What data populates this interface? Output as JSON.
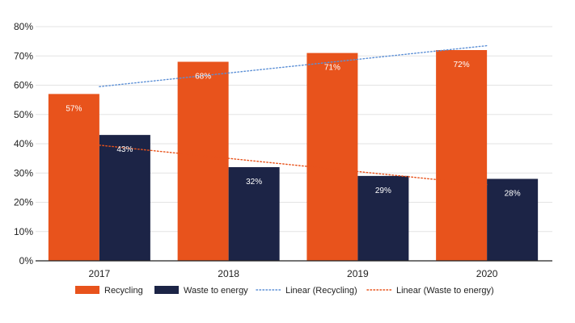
{
  "chart_data": {
    "type": "bar",
    "categories": [
      "2017",
      "2018",
      "2019",
      "2020"
    ],
    "series": [
      {
        "name": "Recycling",
        "values": [
          57,
          68,
          71,
          72
        ],
        "labels": [
          "57%",
          "68%",
          "71%",
          "72%"
        ],
        "color": "#e8531c"
      },
      {
        "name": "Waste to energy",
        "values": [
          43,
          32,
          29,
          28
        ],
        "labels": [
          "43%",
          "32%",
          "29%",
          "28%"
        ],
        "color": "#1c2446"
      }
    ],
    "trendlines": [
      {
        "name": "Linear (Recycling)",
        "of": "Recycling",
        "start": 59.5,
        "end": 73.5,
        "color": "#5b8fd6",
        "style": "dotted"
      },
      {
        "name": "Linear (Waste to energy)",
        "of": "Waste to energy",
        "start": 39.5,
        "end": 26,
        "color": "#e8531c",
        "style": "dotted"
      }
    ],
    "y_ticks": [
      "0%",
      "10%",
      "20%",
      "30%",
      "40%",
      "50%",
      "60%",
      "70%",
      "80%"
    ],
    "ylim": [
      0,
      80
    ],
    "grid": true,
    "legend_position": "bottom",
    "title": "",
    "xlabel": "",
    "ylabel": ""
  }
}
